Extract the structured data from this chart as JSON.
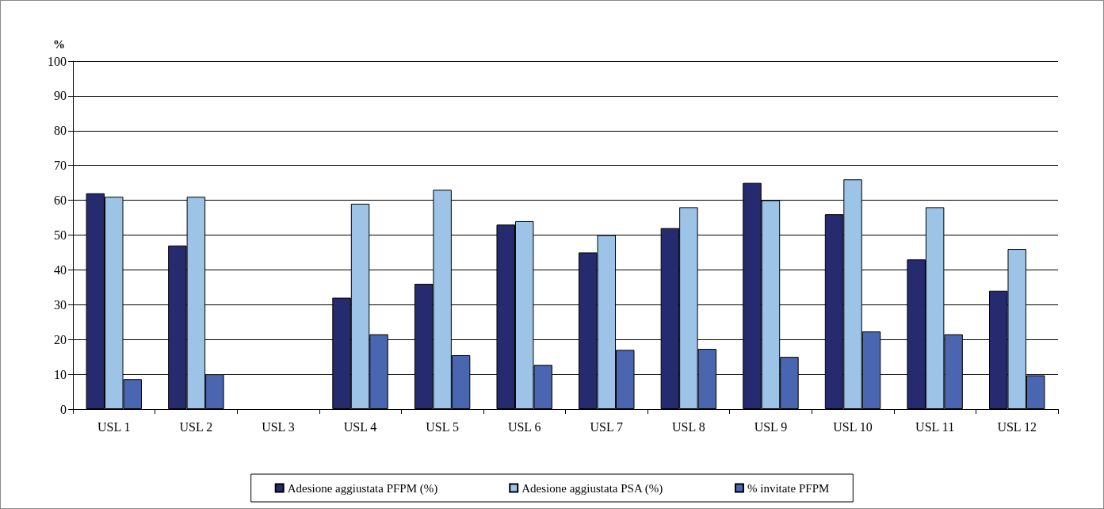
{
  "chart_data": {
    "type": "bar",
    "ylabel": "%",
    "categories": [
      "USL 1",
      "USL 2",
      "USL 3",
      "USL 4",
      "USL 5",
      "USL 6",
      "USL 7",
      "USL 8",
      "USL 9",
      "USL 10",
      "USL 11",
      "USL 12"
    ],
    "series": [
      {
        "name": "Adesione aggiustata PFPM (%)",
        "color": "#262a6e",
        "values": [
          62,
          47,
          null,
          32,
          36,
          53,
          45,
          52,
          65,
          56,
          43,
          34
        ]
      },
      {
        "name": "Adesione aggiustata PSA (%)",
        "color": "#9dc3e6",
        "values": [
          61,
          61,
          null,
          59,
          63,
          54,
          50,
          58,
          60,
          66,
          58,
          46
        ]
      },
      {
        "name": "% invitate PFPM",
        "color": "#4a66b0",
        "values": [
          8.6,
          10,
          null,
          21.5,
          15.5,
          12.7,
          17,
          17.3,
          15,
          22.3,
          21.5,
          9.7
        ]
      }
    ],
    "ylim": [
      0,
      100
    ],
    "yticks": [
      0,
      10,
      20,
      30,
      40,
      50,
      60,
      70,
      80,
      90,
      100
    ],
    "grid": "y",
    "legend": "bottom"
  }
}
